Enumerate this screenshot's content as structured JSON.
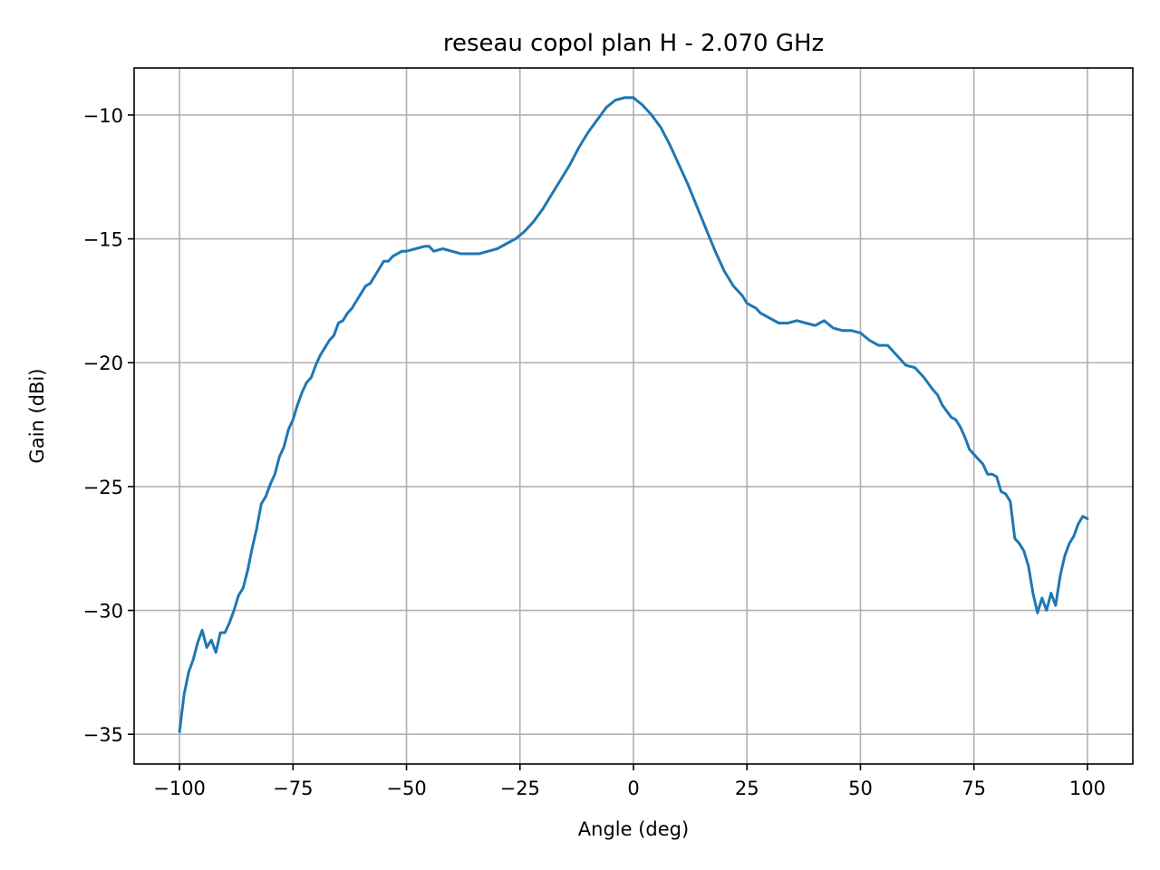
{
  "chart_data": {
    "type": "line",
    "title": "reseau copol plan H - 2.070 GHz",
    "xlabel": "Angle (deg)",
    "ylabel": "Gain (dBi)",
    "xlim": [
      -110,
      110
    ],
    "ylim": [
      -36.2,
      -8.1
    ],
    "grid": true,
    "xticks": [
      -100,
      -75,
      -50,
      -25,
      0,
      25,
      50,
      75,
      100
    ],
    "xtick_labels": [
      "−100",
      "−75",
      "−50",
      "−25",
      "0",
      "25",
      "50",
      "75",
      "100"
    ],
    "yticks": [
      -35,
      -30,
      -25,
      -20,
      -15,
      -10
    ],
    "ytick_labels": [
      "−35",
      "−30",
      "−25",
      "−20",
      "−15",
      "−10"
    ],
    "series": [
      {
        "color": "#1f77b4",
        "x": [
          -100,
          -99,
          -98,
          -97,
          -96,
          -95,
          -94,
          -93,
          -92,
          -91,
          -90,
          -89,
          -88,
          -87,
          -86,
          -85,
          -84,
          -83,
          -82,
          -81,
          -80,
          -79,
          -78,
          -77,
          -76,
          -75,
          -74,
          -73,
          -72,
          -71,
          -70,
          -69,
          -68,
          -67,
          -66,
          -65,
          -64,
          -63,
          -62,
          -61,
          -60,
          -59,
          -58,
          -57,
          -56,
          -55,
          -54,
          -53,
          -52,
          -51,
          -50,
          -48,
          -46,
          -45,
          -44,
          -42,
          -40,
          -38,
          -36,
          -34,
          -32,
          -30,
          -28,
          -26,
          -24,
          -22,
          -20,
          -18,
          -16,
          -14,
          -12,
          -10,
          -8,
          -6,
          -4,
          -2,
          0,
          2,
          4,
          6,
          8,
          10,
          12,
          14,
          16,
          18,
          20,
          22,
          24,
          25,
          26,
          27,
          28,
          30,
          32,
          34,
          36,
          38,
          40,
          41,
          42,
          44,
          46,
          48,
          50,
          52,
          54,
          56,
          58,
          60,
          62,
          64,
          66,
          67,
          68,
          70,
          71,
          72,
          73,
          74,
          75,
          76,
          77,
          78,
          79,
          80,
          81,
          82,
          83,
          84,
          85,
          86,
          87,
          88,
          89,
          90,
          91,
          92,
          93,
          94,
          95,
          96,
          97,
          98,
          99,
          100
        ],
        "y": [
          -34.9,
          -33.4,
          -32.5,
          -32.0,
          -31.3,
          -30.8,
          -31.5,
          -31.2,
          -31.7,
          -30.9,
          -30.9,
          -30.5,
          -30.0,
          -29.4,
          -29.1,
          -28.4,
          -27.5,
          -26.7,
          -25.7,
          -25.4,
          -24.9,
          -24.5,
          -23.8,
          -23.4,
          -22.7,
          -22.3,
          -21.7,
          -21.2,
          -20.8,
          -20.6,
          -20.1,
          -19.7,
          -19.4,
          -19.1,
          -18.9,
          -18.4,
          -18.3,
          -18.0,
          -17.8,
          -17.5,
          -17.2,
          -16.9,
          -16.8,
          -16.5,
          -16.2,
          -15.9,
          -15.9,
          -15.7,
          -15.6,
          -15.5,
          -15.5,
          -15.4,
          -15.3,
          -15.3,
          -15.5,
          -15.4,
          -15.5,
          -15.6,
          -15.6,
          -15.6,
          -15.5,
          -15.4,
          -15.2,
          -15.0,
          -14.7,
          -14.3,
          -13.8,
          -13.2,
          -12.6,
          -12.0,
          -11.3,
          -10.7,
          -10.2,
          -9.7,
          -9.4,
          -9.3,
          -9.3,
          -9.6,
          -10.0,
          -10.5,
          -11.2,
          -12.0,
          -12.8,
          -13.7,
          -14.6,
          -15.5,
          -16.3,
          -16.9,
          -17.3,
          -17.6,
          -17.7,
          -17.8,
          -18.0,
          -18.2,
          -18.4,
          -18.4,
          -18.3,
          -18.4,
          -18.5,
          -18.4,
          -18.3,
          -18.6,
          -18.7,
          -18.7,
          -18.8,
          -19.1,
          -19.3,
          -19.3,
          -19.7,
          -20.1,
          -20.2,
          -20.6,
          -21.1,
          -21.3,
          -21.7,
          -22.2,
          -22.3,
          -22.6,
          -23.0,
          -23.5,
          -23.7,
          -23.9,
          -24.1,
          -24.5,
          -24.5,
          -24.6,
          -25.2,
          -25.3,
          -25.6,
          -27.1,
          -27.3,
          -27.6,
          -28.2,
          -29.3,
          -30.1,
          -29.5,
          -30.0,
          -29.3,
          -29.8,
          -28.6,
          -27.8,
          -27.3,
          -27.0,
          -26.5,
          -26.2,
          -26.3
        ]
      }
    ]
  }
}
